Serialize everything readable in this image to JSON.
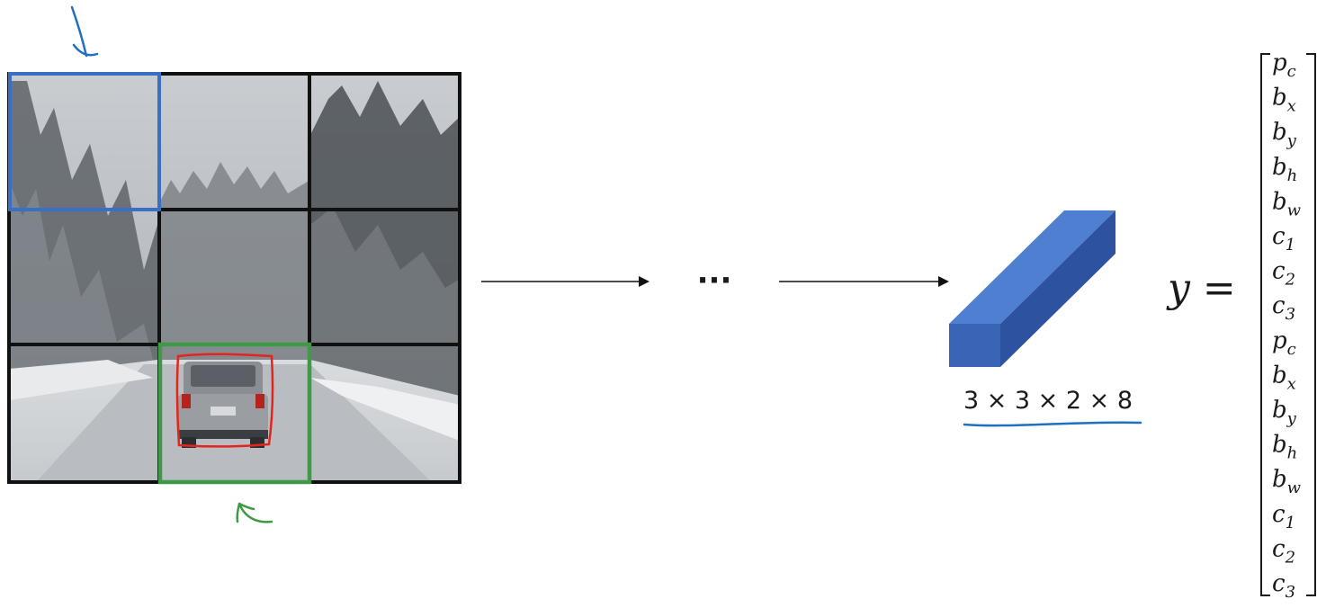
{
  "image": {
    "grid_rows": 3,
    "grid_cols": 3,
    "highlight_cells": [
      {
        "name": "upper-left-cell",
        "row": 0,
        "col": 0,
        "color": "#3a6fc4"
      },
      {
        "name": "car-cell",
        "row": 2,
        "col": 1,
        "color": "#3f9a45"
      }
    ],
    "annotation_colors": {
      "blue_arrow": "#1f6fc2",
      "green_arrow": "#3f9a45",
      "car_box": "#e2261d"
    }
  },
  "flow": {
    "ellipsis": "···"
  },
  "output_volume": {
    "color_front": "#3a64b5",
    "color_top": "#4f7fd0",
    "color_side": "#2d52a0",
    "dimensions_label": "3 × 3 × 2 × 8",
    "underline_color": "#1f6fc2"
  },
  "equation": {
    "lhs": "y =",
    "vector": [
      {
        "base": "p",
        "sub": "c"
      },
      {
        "base": "b",
        "sub": "x"
      },
      {
        "base": "b",
        "sub": "y"
      },
      {
        "base": "b",
        "sub": "h"
      },
      {
        "base": "b",
        "sub": "w"
      },
      {
        "base": "c",
        "sub": "1"
      },
      {
        "base": "c",
        "sub": "2"
      },
      {
        "base": "c",
        "sub": "3"
      },
      {
        "base": "p",
        "sub": "c"
      },
      {
        "base": "b",
        "sub": "x"
      },
      {
        "base": "b",
        "sub": "y"
      },
      {
        "base": "b",
        "sub": "h"
      },
      {
        "base": "b",
        "sub": "w"
      },
      {
        "base": "c",
        "sub": "1"
      },
      {
        "base": "c",
        "sub": "2"
      },
      {
        "base": "c",
        "sub": "3"
      }
    ]
  }
}
